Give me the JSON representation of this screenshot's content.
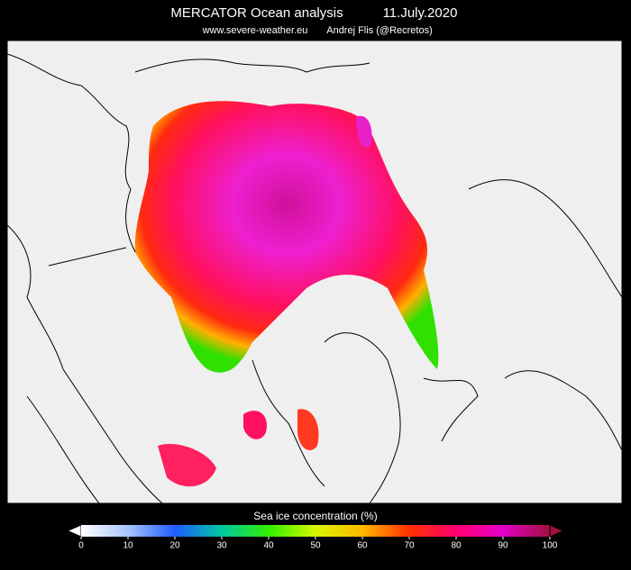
{
  "header": {
    "title": "MERCATOR Ocean analysis",
    "date": "11.July.2020",
    "source": "www.severe-weather.eu",
    "author": "Andrej Flis (@Recretos)"
  },
  "colorbar": {
    "label": "Sea ice concentration (%)",
    "range": [
      0,
      100
    ],
    "ticks": [
      0,
      10,
      20,
      30,
      40,
      50,
      60,
      70,
      80,
      90,
      100
    ],
    "colors": [
      "#ffffff",
      "#a8c4ff",
      "#1e5cff",
      "#00c8a0",
      "#30f000",
      "#d8f800",
      "#ffb800",
      "#ff3000",
      "#ff0070",
      "#e400c8",
      "#a0103c"
    ]
  }
}
